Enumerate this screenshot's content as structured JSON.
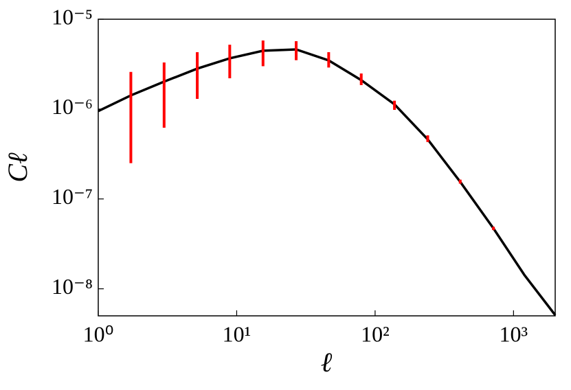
{
  "chart_data": {
    "type": "line",
    "x_label": "ℓ",
    "y_label": "Cℓ",
    "log_x": true,
    "log_y": true,
    "xlim": [
      1,
      2000
    ],
    "ylim": [
      5e-09,
      1e-05
    ],
    "xticks": [
      {
        "value": 1,
        "label": "10⁰"
      },
      {
        "value": 10,
        "label": "10¹"
      },
      {
        "value": 100,
        "label": "10²"
      },
      {
        "value": 1000,
        "label": "10³"
      }
    ],
    "yticks": [
      {
        "value": 1e-08,
        "label": "10⁻⁸"
      },
      {
        "value": 1e-07,
        "label": "10⁻⁷"
      },
      {
        "value": 1e-06,
        "label": "10⁻⁶"
      },
      {
        "value": 1e-05,
        "label": "10⁻⁵"
      }
    ],
    "series": [
      {
        "kind": "line",
        "color": "#000000",
        "x": [
          1,
          1.72,
          2.99,
          5.19,
          8.91,
          15.5,
          26.9,
          46.2,
          79.4,
          138,
          240,
          412,
          716,
          1200,
          2000
        ],
        "values": [
          9.5e-07,
          1.42e-06,
          2.02e-06,
          2.82e-06,
          3.67e-06,
          4.46e-06,
          4.61e-06,
          3.48e-06,
          2.1e-06,
          1.13e-06,
          4.6e-07,
          1.55e-07,
          4.7e-08,
          1.42e-08,
          5.1e-09
        ]
      },
      {
        "kind": "errorbar",
        "color": "#ff0000",
        "x": [
          1.72,
          2.99,
          5.19,
          8.91,
          15.5,
          26.9,
          46.2,
          79.4,
          138,
          240,
          412,
          716
        ],
        "values": [
          1.42e-06,
          1.96e-06,
          2.8e-06,
          3.7e-06,
          4.4e-06,
          4.6e-06,
          3.6e-06,
          2.17e-06,
          1.11e-06,
          4.7e-07,
          1.56e-07,
          4.7e-08
        ],
        "errors": [
          1.17e-06,
          1.34e-06,
          1.5e-06,
          1.5e-06,
          1.4e-06,
          1.1e-06,
          7e-07,
          3.2e-07,
          1.3e-07,
          4e-08,
          8e-09,
          2e-09
        ]
      }
    ]
  }
}
